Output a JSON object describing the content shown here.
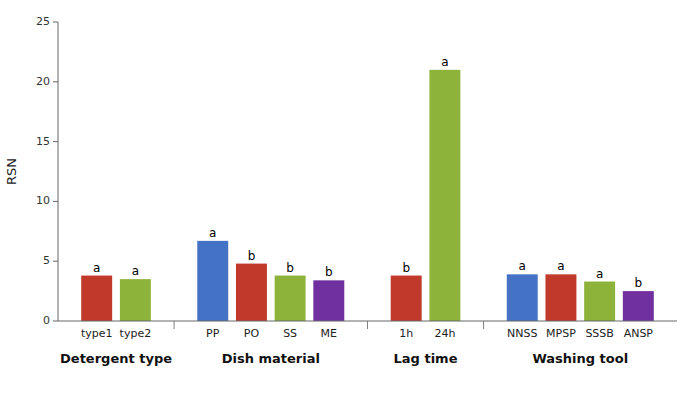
{
  "chart_data": {
    "type": "bar",
    "ylabel": "RSN",
    "ylim": [
      0,
      25
    ],
    "yticks": [
      0,
      5,
      10,
      15,
      20,
      25
    ],
    "grid": false,
    "groups": [
      {
        "label": "Detergent type",
        "categories": [
          "type1",
          "type2"
        ],
        "values": [
          3.8,
          3.5
        ],
        "colors": [
          "#c0392b",
          "#8db33a"
        ],
        "annotations": [
          "a",
          "a"
        ]
      },
      {
        "label": "Dish material",
        "categories": [
          "PP",
          "PO",
          "SS",
          "ME"
        ],
        "values": [
          6.7,
          4.8,
          3.8,
          3.4
        ],
        "colors": [
          "#4472c4",
          "#c0392b",
          "#8db33a",
          "#7030a0"
        ],
        "annotations": [
          "a",
          "b",
          "b",
          "b"
        ]
      },
      {
        "label": "Lag time",
        "categories": [
          "1h",
          "24h"
        ],
        "values": [
          3.8,
          21.0
        ],
        "colors": [
          "#c0392b",
          "#8db33a"
        ],
        "annotations": [
          "b",
          "a"
        ]
      },
      {
        "label": "Washing tool",
        "categories": [
          "NNSS",
          "MPSP",
          "SSSB",
          "ANSP"
        ],
        "values": [
          3.9,
          3.9,
          3.3,
          2.5
        ],
        "colors": [
          "#4472c4",
          "#c0392b",
          "#8db33a",
          "#7030a0"
        ],
        "annotations": [
          "a",
          "a",
          "a",
          "b"
        ]
      }
    ]
  }
}
